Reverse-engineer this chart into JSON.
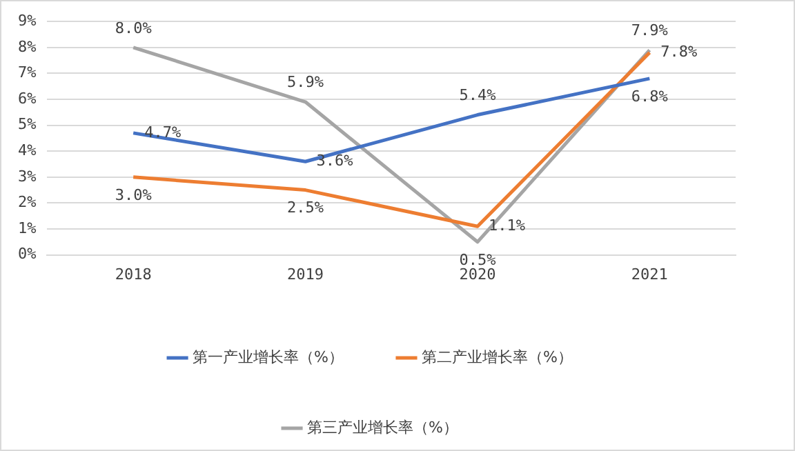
{
  "chart_data": {
    "type": "line",
    "categories": [
      "2018",
      "2019",
      "2020",
      "2021"
    ],
    "series": [
      {
        "name": "第一产业增长率（%）",
        "color": "#4472c4",
        "values": [
          4.7,
          3.6,
          5.4,
          6.8
        ],
        "value_labels": [
          "4.7%",
          "3.6%",
          "5.4%",
          "6.8%"
        ]
      },
      {
        "name": "第二产业增长率（%）",
        "color": "#ed7d31",
        "values": [
          3.0,
          2.5,
          1.1,
          7.8
        ],
        "value_labels": [
          "3.0%",
          "2.5%",
          "1.1%",
          "7.8%"
        ]
      },
      {
        "name": "第三产业增长率（%）",
        "color": "#a5a5a5",
        "values": [
          8.0,
          5.9,
          0.5,
          7.9
        ],
        "value_labels": [
          "8.0%",
          "5.9%",
          "0.5%",
          "7.9%"
        ]
      }
    ],
    "ylim": [
      0,
      9
    ],
    "yticks": [
      {
        "value": 0,
        "label": "0%"
      },
      {
        "value": 1,
        "label": "1%"
      },
      {
        "value": 2,
        "label": "2%"
      },
      {
        "value": 3,
        "label": "3%"
      },
      {
        "value": 4,
        "label": "4%"
      },
      {
        "value": 5,
        "label": "5%"
      },
      {
        "value": 6,
        "label": "6%"
      },
      {
        "value": 7,
        "label": "7%"
      },
      {
        "value": 8,
        "label": "8%"
      },
      {
        "value": 9,
        "label": "9%"
      }
    ],
    "grid": "y",
    "legend": "bottom",
    "marker": "none",
    "line_style": "solid"
  }
}
